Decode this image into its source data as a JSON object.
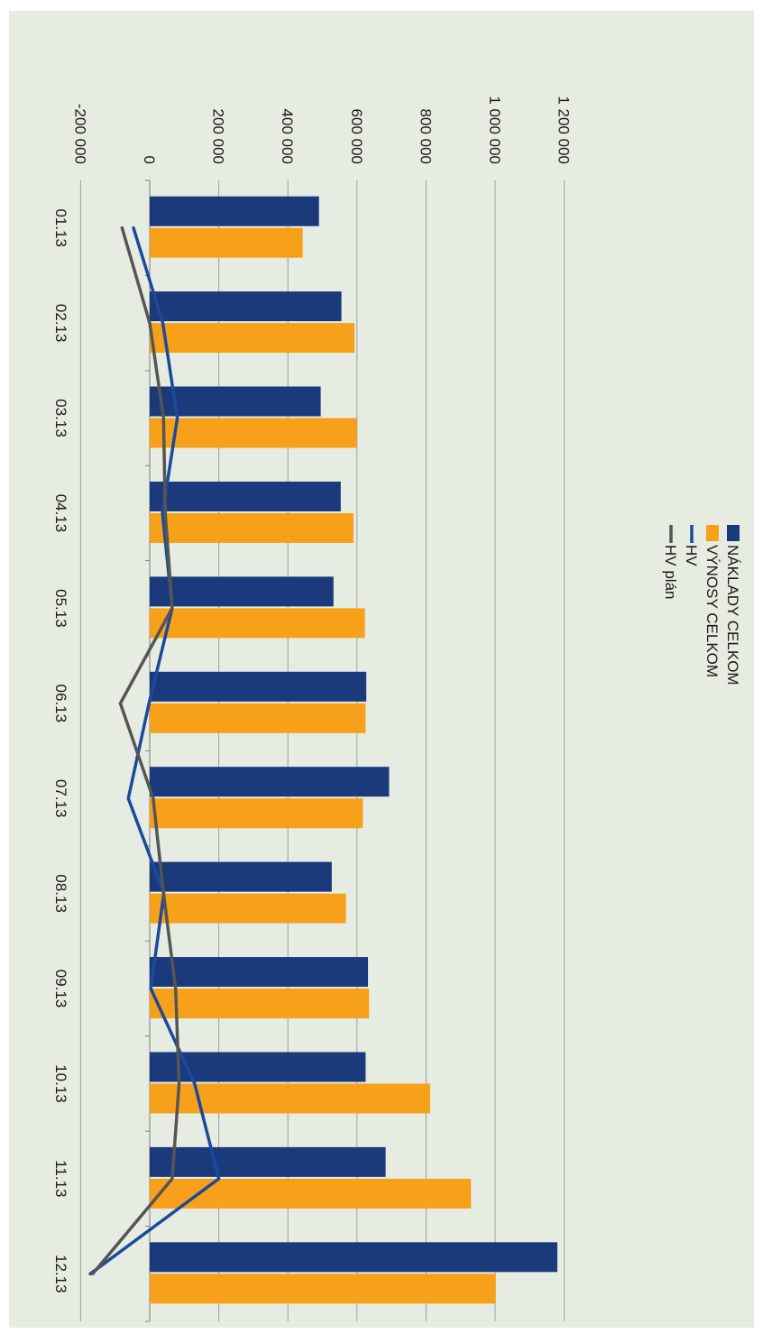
{
  "chart_data": {
    "type": "bar",
    "orientation": "rotated-90-clockwise",
    "categories": [
      "01.13",
      "02.13",
      "03.13",
      "04.13",
      "05.13",
      "06.13",
      "07.13",
      "08.13",
      "09.13",
      "10.13",
      "11.13",
      "12.13"
    ],
    "series": [
      {
        "name": "NÁKLADY CELKOM",
        "kind": "bar",
        "color": "#1b3a7c",
        "values": [
          490000,
          555000,
          495000,
          553000,
          532000,
          627000,
          693000,
          527000,
          632000,
          625000,
          683000,
          1180000
        ]
      },
      {
        "name": "VÝNOSY CELKOM",
        "kind": "bar",
        "color": "#f7a11a",
        "values": [
          443000,
          593000,
          600000,
          590000,
          623000,
          625000,
          617000,
          568000,
          635000,
          812000,
          930000,
          1002000
        ]
      },
      {
        "name": "HV",
        "kind": "line",
        "color": "#1b4a9c",
        "values": [
          -47000,
          38000,
          80000,
          37000,
          65000,
          -2000,
          -62000,
          41000,
          3000,
          130000,
          200000,
          -172000
        ]
      },
      {
        "name": "HV plán",
        "kind": "line",
        "color": "#555555",
        "values": [
          -80000,
          0,
          40000,
          45000,
          65000,
          -85000,
          10000,
          40000,
          75000,
          85000,
          65000,
          -165000
        ]
      }
    ],
    "ylim": [
      -200000,
      1200000
    ],
    "yticks": [
      "-200 000",
      "0",
      "200 000",
      "400 000",
      "600 000",
      "800 000",
      "1 000 000",
      "1 200 000"
    ],
    "ytick_values": [
      -200000,
      0,
      200000,
      400000,
      600000,
      800000,
      1000000,
      1200000
    ],
    "grid": true,
    "legend": "right"
  }
}
